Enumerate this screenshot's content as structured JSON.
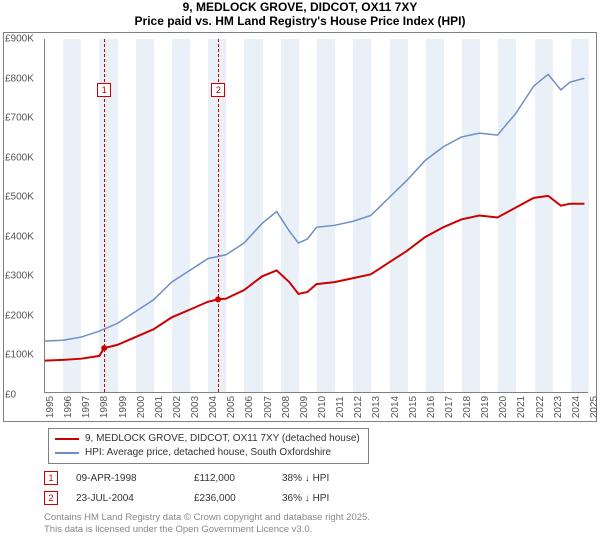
{
  "title_line1": "9, MEDLOCK GROVE, DIDCOT, OX11 7XY",
  "title_line2": "Price paid vs. HM Land Registry's House Price Index (HPI)",
  "chart": {
    "type": "line",
    "background_color": "#ffffff",
    "border_color": "#808080",
    "ylabel_prefix": "£",
    "ylim": [
      0,
      900000
    ],
    "ytick_step": 100000,
    "yticks": [
      "£0",
      "£100K",
      "£200K",
      "£300K",
      "£400K",
      "£500K",
      "£600K",
      "£700K",
      "£800K",
      "£900K"
    ],
    "xlim": [
      1995,
      2025
    ],
    "xticks": [
      "1995",
      "1996",
      "1997",
      "1998",
      "1999",
      "2000",
      "2001",
      "2002",
      "2003",
      "2004",
      "2005",
      "2006",
      "2007",
      "2008",
      "2009",
      "2010",
      "2011",
      "2012",
      "2013",
      "2014",
      "2015",
      "2016",
      "2017",
      "2018",
      "2019",
      "2020",
      "2021",
      "2022",
      "2023",
      "2024",
      "2025"
    ],
    "alt_band_color": "#eaf0f8",
    "grid_color": "#e0e0e0",
    "series": [
      {
        "name": "price_paid",
        "label": "9, MEDLOCK GROVE, DIDCOT, OX11 7XY (detached house)",
        "color": "#cc0000",
        "line_width": 2,
        "data": [
          [
            1995.0,
            80000
          ],
          [
            1996.0,
            82000
          ],
          [
            1997.0,
            85000
          ],
          [
            1998.0,
            92000
          ],
          [
            1998.27,
            112000
          ],
          [
            1999.0,
            120000
          ],
          [
            2000.0,
            140000
          ],
          [
            2001.0,
            160000
          ],
          [
            2002.0,
            190000
          ],
          [
            2003.0,
            210000
          ],
          [
            2004.0,
            230000
          ],
          [
            2004.56,
            236000
          ],
          [
            2005.0,
            238000
          ],
          [
            2006.0,
            260000
          ],
          [
            2007.0,
            295000
          ],
          [
            2007.8,
            310000
          ],
          [
            2008.5,
            280000
          ],
          [
            2009.0,
            250000
          ],
          [
            2009.5,
            255000
          ],
          [
            2010.0,
            275000
          ],
          [
            2011.0,
            280000
          ],
          [
            2012.0,
            290000
          ],
          [
            2013.0,
            300000
          ],
          [
            2014.0,
            330000
          ],
          [
            2015.0,
            360000
          ],
          [
            2016.0,
            395000
          ],
          [
            2017.0,
            420000
          ],
          [
            2018.0,
            440000
          ],
          [
            2019.0,
            450000
          ],
          [
            2020.0,
            445000
          ],
          [
            2021.0,
            470000
          ],
          [
            2022.0,
            495000
          ],
          [
            2022.8,
            500000
          ],
          [
            2023.5,
            475000
          ],
          [
            2024.0,
            480000
          ],
          [
            2024.8,
            480000
          ]
        ]
      },
      {
        "name": "hpi",
        "label": "HPI: Average price, detached house, South Oxfordshire",
        "color": "#6d8fc5",
        "line_width": 1.5,
        "data": [
          [
            1995.0,
            130000
          ],
          [
            1996.0,
            132000
          ],
          [
            1997.0,
            140000
          ],
          [
            1998.0,
            155000
          ],
          [
            1999.0,
            175000
          ],
          [
            2000.0,
            205000
          ],
          [
            2001.0,
            235000
          ],
          [
            2002.0,
            280000
          ],
          [
            2003.0,
            310000
          ],
          [
            2004.0,
            340000
          ],
          [
            2005.0,
            350000
          ],
          [
            2006.0,
            380000
          ],
          [
            2007.0,
            430000
          ],
          [
            2007.8,
            460000
          ],
          [
            2008.5,
            410000
          ],
          [
            2009.0,
            380000
          ],
          [
            2009.5,
            390000
          ],
          [
            2010.0,
            420000
          ],
          [
            2011.0,
            425000
          ],
          [
            2012.0,
            435000
          ],
          [
            2013.0,
            450000
          ],
          [
            2014.0,
            495000
          ],
          [
            2015.0,
            540000
          ],
          [
            2016.0,
            590000
          ],
          [
            2017.0,
            625000
          ],
          [
            2018.0,
            650000
          ],
          [
            2019.0,
            660000
          ],
          [
            2020.0,
            655000
          ],
          [
            2021.0,
            710000
          ],
          [
            2022.0,
            780000
          ],
          [
            2022.8,
            810000
          ],
          [
            2023.5,
            770000
          ],
          [
            2024.0,
            790000
          ],
          [
            2024.8,
            800000
          ]
        ]
      }
    ],
    "markers": [
      {
        "n": "1",
        "x": 1998.27,
        "y": 112000,
        "color": "#cc0000"
      },
      {
        "n": "2",
        "x": 2004.56,
        "y": 236000,
        "color": "#cc0000"
      }
    ]
  },
  "legend": {
    "items": [
      {
        "color": "#cc0000",
        "width": 2,
        "label": "9, MEDLOCK GROVE, DIDCOT, OX11 7XY (detached house)"
      },
      {
        "color": "#6d8fc5",
        "width": 1.5,
        "label": "HPI: Average price, detached house, South Oxfordshire"
      }
    ]
  },
  "sales": [
    {
      "n": "1",
      "color": "#cc0000",
      "date": "09-APR-1998",
      "price": "£112,000",
      "diff": "38% ↓ HPI"
    },
    {
      "n": "2",
      "color": "#cc0000",
      "date": "23-JUL-2004",
      "price": "£236,000",
      "diff": "36% ↓ HPI"
    }
  ],
  "footer_line1": "Contains HM Land Registry data © Crown copyright and database right 2025.",
  "footer_line2": "This data is licensed under the Open Government Licence v3.0."
}
